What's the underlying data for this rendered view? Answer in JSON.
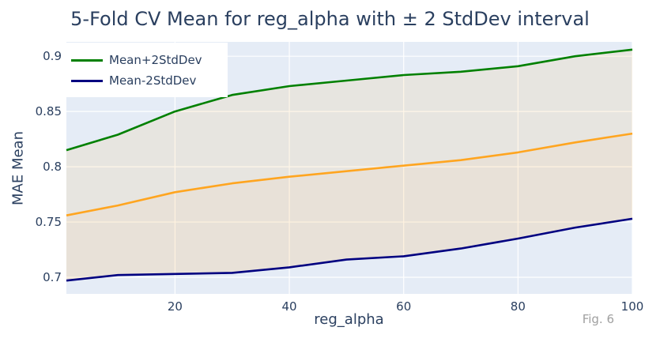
{
  "chart_data": {
    "type": "line",
    "title": "5-Fold CV Mean for reg_alpha with ± 2 StdDev interval",
    "xlabel": "reg_alpha",
    "ylabel": "MAE Mean",
    "xlim": [
      1,
      100
    ],
    "ylim": [
      0.685,
      0.913
    ],
    "x_ticks": [
      20,
      40,
      60,
      80,
      100
    ],
    "y_ticks": [
      0.7,
      0.75,
      0.8,
      0.85,
      0.9
    ],
    "x_tick_labels": [
      "20",
      "40",
      "60",
      "80",
      "100"
    ],
    "y_tick_labels": [
      "0.7",
      "0.75",
      "0.8",
      "0.85",
      "0.9"
    ],
    "x": [
      1,
      10,
      20,
      30,
      40,
      50,
      60,
      70,
      80,
      90,
      100
    ],
    "series": [
      {
        "name": "Mean+2StdDev",
        "color": "#008000",
        "values": [
          0.815,
          0.829,
          0.85,
          0.865,
          0.873,
          0.878,
          0.883,
          0.886,
          0.891,
          0.9,
          0.906
        ]
      },
      {
        "name": "",
        "color": "#ffa520",
        "values": [
          0.756,
          0.765,
          0.777,
          0.785,
          0.791,
          0.796,
          0.801,
          0.806,
          0.813,
          0.822,
          0.83
        ]
      },
      {
        "name": "Mean-2StdDev",
        "color": "#000080",
        "values": [
          0.697,
          0.702,
          0.703,
          0.704,
          0.709,
          0.716,
          0.719,
          0.726,
          0.735,
          0.745,
          0.753
        ]
      }
    ],
    "fill_color": "#ffa520",
    "grid": true,
    "legend_placement": "top-left",
    "plot_background": "#e5ecf6",
    "annotation": "Fig. 6"
  }
}
